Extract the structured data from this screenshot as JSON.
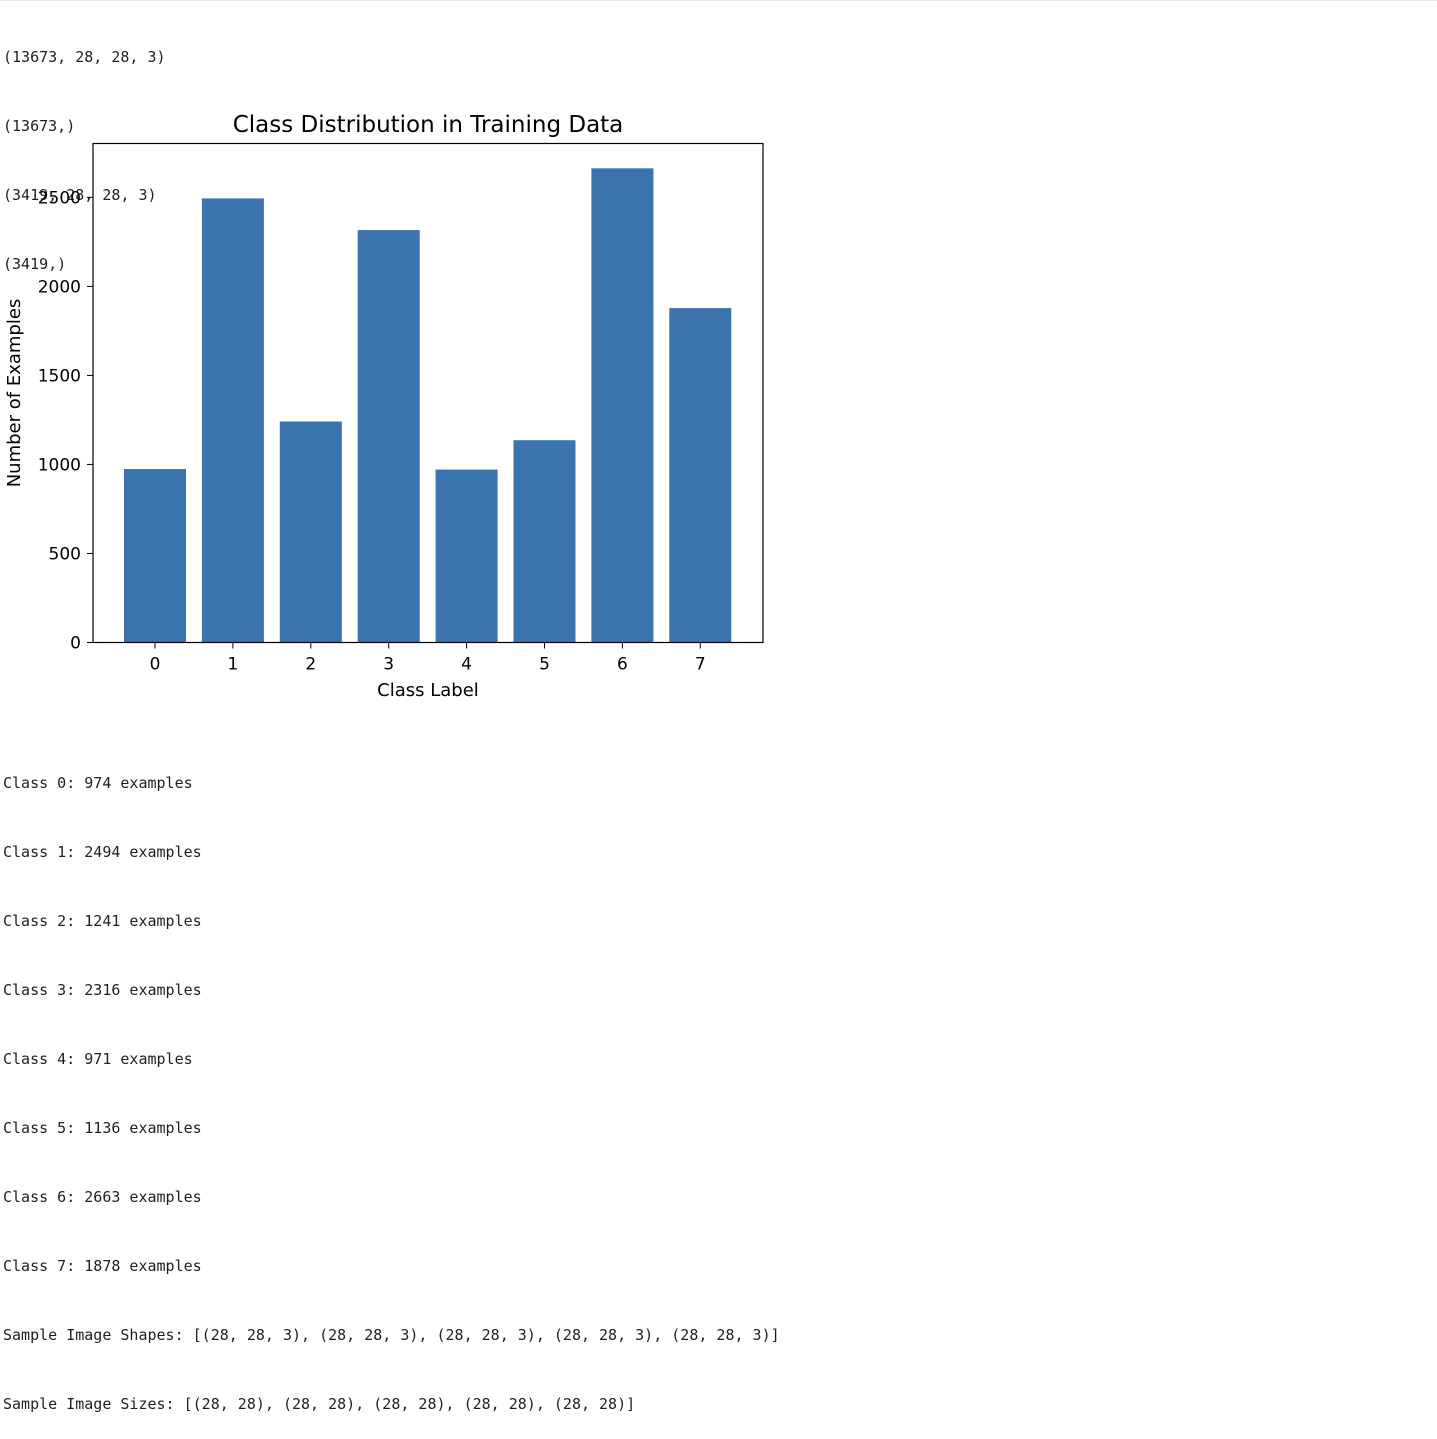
{
  "output_top": [
    "(13673, 28, 28, 3)",
    "(13673,)",
    "(3419, 28, 28, 3)",
    "(3419,)"
  ],
  "chart_data": {
    "type": "bar",
    "title": "Class Distribution in Training Data",
    "xlabel": "Class Label",
    "ylabel": "Number of Examples",
    "categories": [
      "0",
      "1",
      "2",
      "3",
      "4",
      "5",
      "6",
      "7"
    ],
    "values": [
      974,
      2494,
      1241,
      2316,
      971,
      1136,
      2663,
      1878
    ],
    "ylim": [
      0,
      2800
    ],
    "yticks": [
      0,
      500,
      1000,
      1500,
      2000,
      2500
    ],
    "bar_color": "#3a73ad",
    "grid": false,
    "legend": false
  },
  "output_bottom": [
    "Class 0: 974 examples",
    "Class 1: 2494 examples",
    "Class 2: 1241 examples",
    "Class 3: 2316 examples",
    "Class 4: 971 examples",
    "Class 5: 1136 examples",
    "Class 6: 2663 examples",
    "Class 7: 1878 examples",
    "Sample Image Shapes: [(28, 28, 3), (28, 28, 3), (28, 28, 3), (28, 28, 3), (28, 28, 3)]",
    "Sample Image Sizes: [(28, 28), (28, 28), (28, 28), (28, 28), (28, 28)]"
  ]
}
